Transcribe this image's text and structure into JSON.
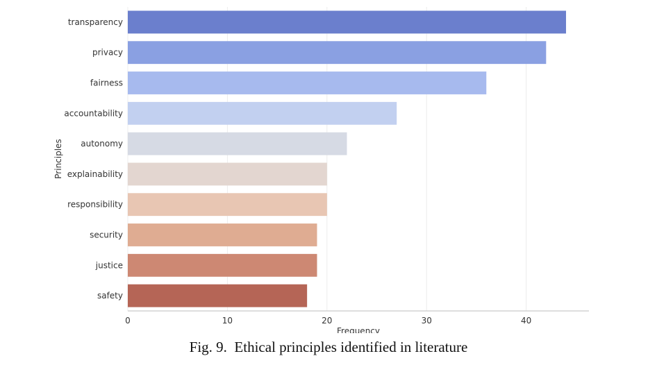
{
  "caption": "Fig. 9.  Ethical principles identified in literature",
  "chart_data": {
    "type": "bar",
    "orientation": "horizontal",
    "xlabel": "Frequency",
    "ylabel": "Principles",
    "categories": [
      "transparency",
      "privacy",
      "fairness",
      "accountability",
      "autonomy",
      "explainability",
      "responsibility",
      "security",
      "justice",
      "safety"
    ],
    "values": [
      44,
      42,
      36,
      27,
      22,
      20,
      20,
      19,
      19,
      18
    ],
    "colors": [
      "#6b7fcd",
      "#8aa0e2",
      "#a7baee",
      "#c2d0f0",
      "#d6dae4",
      "#e3d6d0",
      "#e8c6b3",
      "#dfac92",
      "#cd8873",
      "#b56556"
    ],
    "xlim": [
      0,
      46.3
    ],
    "xticks": [
      0,
      10,
      20,
      30,
      40
    ],
    "grid": "vertical",
    "legend": "none"
  }
}
